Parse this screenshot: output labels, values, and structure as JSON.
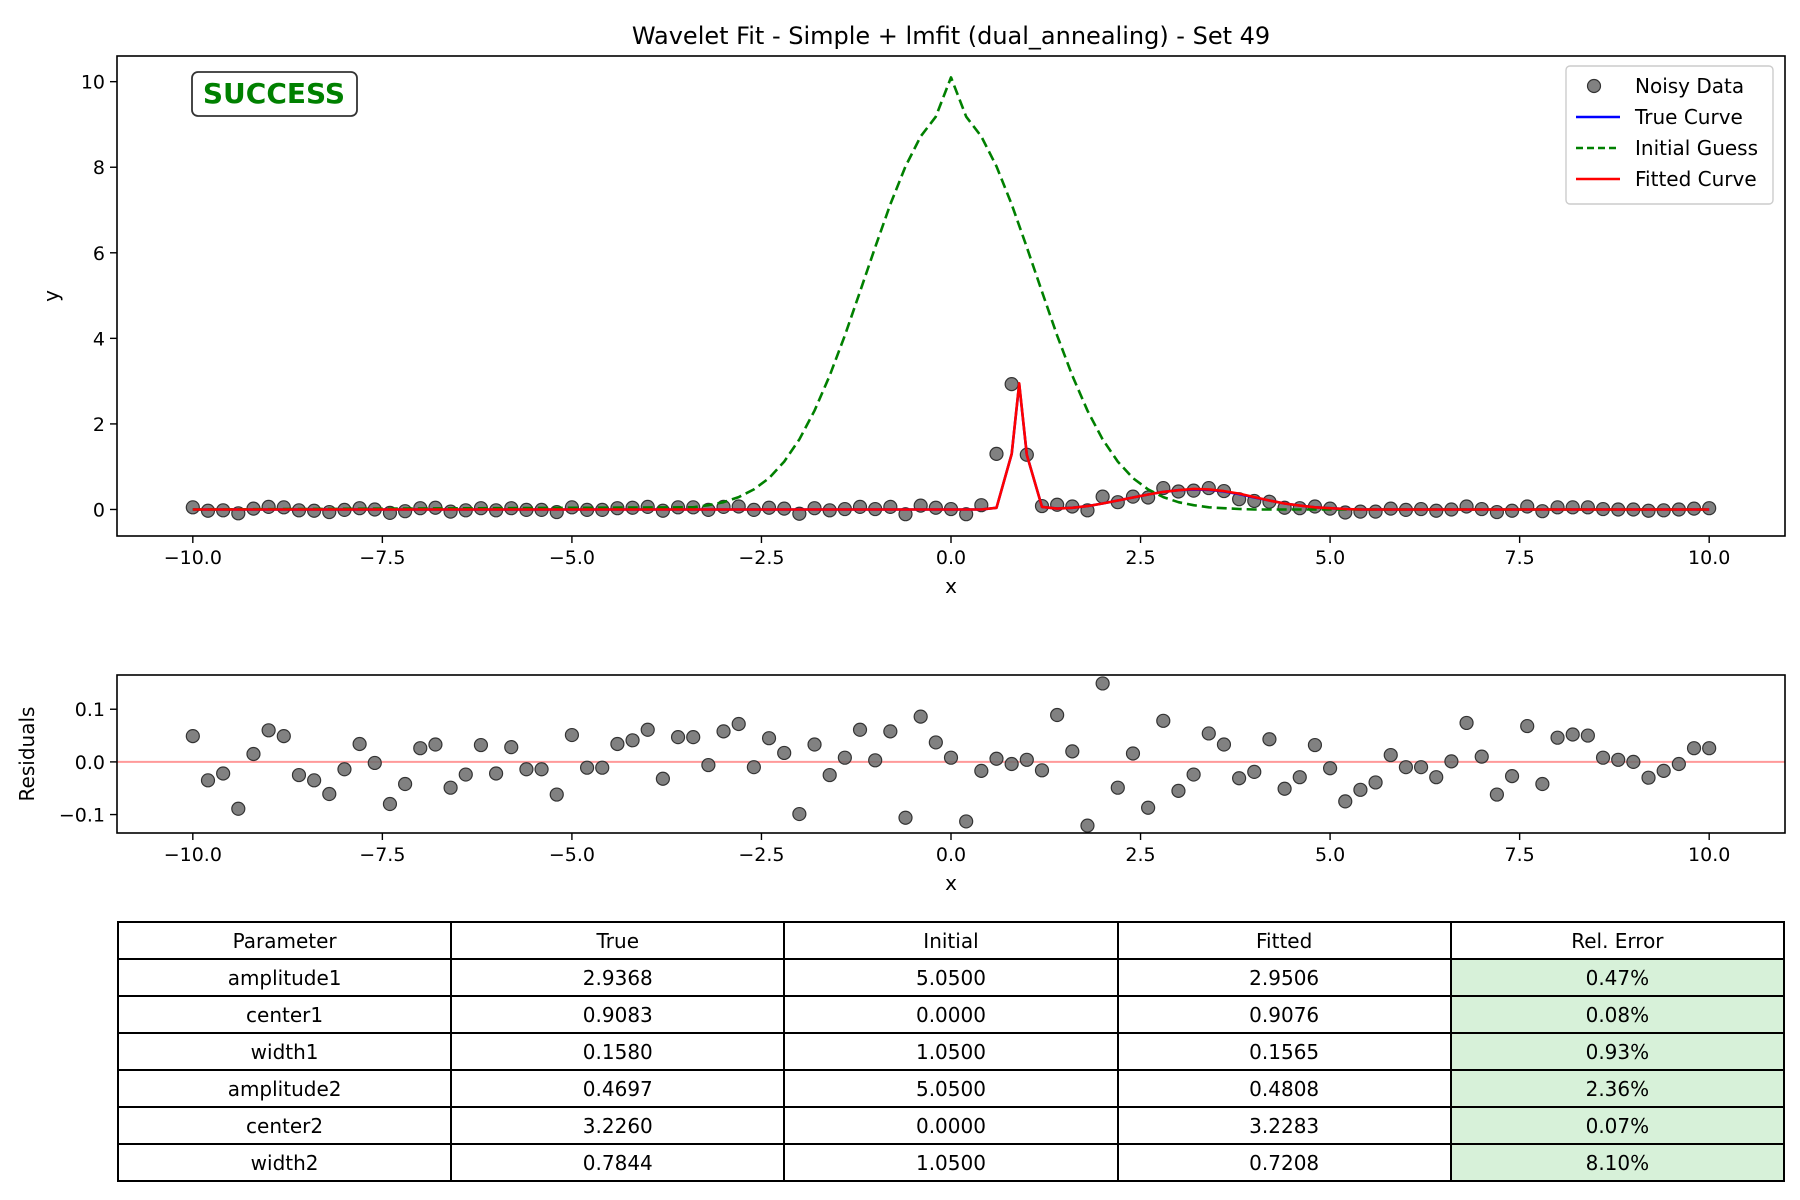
{
  "chart_data": [
    {
      "type": "line",
      "title": "Wavelet Fit - Simple + lmfit (dual_annealing) - Set 49",
      "xlabel": "x",
      "ylabel": "y",
      "xlim": [
        -11.0,
        11.0
      ],
      "ylim": [
        -0.62,
        10.6
      ],
      "xticks": [
        -10.0,
        -7.5,
        -5.0,
        -2.5,
        0.0,
        2.5,
        5.0,
        7.5,
        10.0
      ],
      "xtick_labels": [
        "−10.0",
        "−7.5",
        "−5.0",
        "−2.5",
        "0.0",
        "2.5",
        "5.0",
        "7.5",
        "10.0"
      ],
      "yticks": [
        0,
        2,
        4,
        6,
        8,
        10
      ],
      "ytick_labels": [
        "0",
        "2",
        "4",
        "6",
        "8",
        "10"
      ],
      "grid": false,
      "legend_position": "top-right",
      "status_badge": "SUCCESS",
      "series": [
        {
          "name": "Noisy Data",
          "kind": "scatter",
          "color": "#6b6b6b",
          "x": [
            -10.0,
            -9.8,
            -9.6,
            -9.4,
            -9.2,
            -9.0,
            -8.8,
            -8.6,
            -8.4,
            -8.2,
            -8.0,
            -7.8,
            -7.6,
            -7.4,
            -7.2,
            -7.0,
            -6.8,
            -6.6,
            -6.4,
            -6.2,
            -6.0,
            -5.8,
            -5.6,
            -5.4,
            -5.2,
            -5.0,
            -4.8,
            -4.6,
            -4.4,
            -4.2,
            -4.0,
            -3.8,
            -3.6,
            -3.4,
            -3.2,
            -3.0,
            -2.8,
            -2.6,
            -2.4,
            -2.2,
            -2.0,
            -1.8,
            -1.6,
            -1.4,
            -1.2,
            -1.0,
            -0.8,
            -0.6,
            -0.4,
            -0.2,
            0.0,
            0.2,
            0.4,
            0.6,
            0.8,
            1.0,
            1.2,
            1.4,
            1.6,
            1.8,
            2.0,
            2.2,
            2.4,
            2.6,
            2.8,
            3.0,
            3.2,
            3.4,
            3.6,
            3.8,
            4.0,
            4.2,
            4.4,
            4.6,
            4.8,
            5.0,
            5.2,
            5.4,
            5.6,
            5.8,
            6.0,
            6.2,
            6.4,
            6.6,
            6.8,
            7.0,
            7.2,
            7.4,
            7.6,
            7.8,
            8.0,
            8.2,
            8.4,
            8.6,
            8.8,
            9.0,
            9.2,
            9.4,
            9.6,
            9.8,
            10.0
          ],
          "y": [
            0.05,
            -0.03,
            -0.02,
            -0.09,
            0.02,
            0.06,
            0.05,
            -0.02,
            -0.03,
            -0.06,
            -0.01,
            0.03,
            0.0,
            -0.08,
            -0.04,
            0.03,
            0.04,
            -0.05,
            -0.02,
            0.03,
            -0.02,
            0.03,
            -0.01,
            -0.01,
            -0.06,
            0.05,
            -0.01,
            -0.01,
            0.03,
            0.04,
            0.06,
            -0.03,
            0.05,
            0.05,
            -0.01,
            0.06,
            0.07,
            -0.01,
            0.04,
            0.02,
            -0.1,
            0.03,
            -0.02,
            0.01,
            0.06,
            0.01,
            0.06,
            -0.11,
            0.09,
            0.04,
            0.01,
            -0.11,
            0.1,
            1.3,
            2.93,
            1.28,
            0.08,
            0.11,
            0.07,
            -0.02,
            0.3,
            0.17,
            0.3,
            0.28,
            0.5,
            0.42,
            0.44,
            0.5,
            0.43,
            0.24,
            0.2,
            0.18,
            0.04,
            0.03,
            0.07,
            0.02,
            -0.07,
            -0.05,
            -0.05,
            0.02,
            -0.01,
            0.01,
            -0.03,
            0.0,
            0.07,
            0.01,
            -0.06,
            -0.03,
            0.07,
            -0.04,
            0.05,
            0.05,
            0.05,
            0.01,
            0.0,
            0.0,
            -0.03,
            -0.02,
            0.0,
            0.02,
            0.03
          ]
        },
        {
          "name": "True Curve",
          "kind": "line",
          "color": "#0000ff",
          "dash": "",
          "x": [
            -10.0,
            0.4,
            0.6,
            0.8,
            0.9,
            1.0,
            1.2,
            1.4,
            1.6,
            1.8,
            2.0,
            2.2,
            2.4,
            2.6,
            2.8,
            3.0,
            3.2,
            3.4,
            3.6,
            3.8,
            4.0,
            4.2,
            4.4,
            4.6,
            4.8,
            5.0,
            5.2,
            5.4,
            5.6,
            5.8,
            6.0,
            10.0
          ],
          "y": [
            0.0,
            0.0,
            0.04,
            1.3,
            2.93,
            1.28,
            0.06,
            0.02,
            0.04,
            0.08,
            0.14,
            0.21,
            0.28,
            0.35,
            0.41,
            0.45,
            0.47,
            0.46,
            0.42,
            0.36,
            0.28,
            0.21,
            0.14,
            0.09,
            0.05,
            0.03,
            0.01,
            0.0,
            0.0,
            0.0,
            0.0,
            0.0
          ]
        },
        {
          "name": "Initial Guess",
          "kind": "line",
          "color": "#008000",
          "dash": "10,5",
          "x": [
            -10.0,
            -3.4,
            -3.2,
            -3.0,
            -2.8,
            -2.6,
            -2.4,
            -2.2,
            -2.0,
            -1.8,
            -1.6,
            -1.4,
            -1.2,
            -1.0,
            -0.8,
            -0.6,
            -0.4,
            -0.2,
            0.0,
            0.2,
            0.4,
            0.6,
            0.8,
            1.0,
            1.2,
            1.4,
            1.6,
            1.8,
            2.0,
            2.2,
            2.4,
            2.6,
            2.8,
            3.0,
            3.2,
            3.4,
            3.6,
            3.8,
            4.0,
            4.2,
            4.4,
            4.6,
            10.0
          ],
          "y": [
            0.0,
            0.05,
            0.1,
            0.17,
            0.29,
            0.47,
            0.73,
            1.12,
            1.64,
            2.31,
            3.13,
            4.07,
            5.09,
            6.13,
            7.13,
            8.02,
            8.72,
            9.18,
            10.1,
            9.18,
            8.72,
            8.02,
            7.13,
            6.13,
            5.09,
            4.07,
            3.13,
            2.31,
            1.64,
            1.12,
            0.73,
            0.47,
            0.29,
            0.17,
            0.1,
            0.05,
            0.03,
            0.01,
            0.0,
            0.0,
            0.0,
            0.0,
            0.0
          ]
        },
        {
          "name": "Fitted Curve",
          "kind": "line",
          "color": "#ff0000",
          "dash": "",
          "x": [
            -10.0,
            0.4,
            0.6,
            0.8,
            0.9,
            1.0,
            1.2,
            1.4,
            1.6,
            1.8,
            2.0,
            2.2,
            2.4,
            2.6,
            2.8,
            3.0,
            3.2,
            3.4,
            3.6,
            3.8,
            4.0,
            4.2,
            4.4,
            4.6,
            4.8,
            5.0,
            5.2,
            5.4,
            5.6,
            5.8,
            6.0,
            10.0
          ],
          "y": [
            0.0,
            0.0,
            0.04,
            1.3,
            2.95,
            1.28,
            0.06,
            0.02,
            0.04,
            0.08,
            0.14,
            0.21,
            0.28,
            0.35,
            0.41,
            0.45,
            0.48,
            0.47,
            0.43,
            0.37,
            0.29,
            0.21,
            0.14,
            0.09,
            0.05,
            0.03,
            0.01,
            0.0,
            0.0,
            0.0,
            0.0,
            0.0
          ]
        }
      ]
    },
    {
      "type": "scatter",
      "title": "",
      "xlabel": "x",
      "ylabel": "Residuals",
      "xlim": [
        -11.0,
        11.0
      ],
      "ylim": [
        -0.135,
        0.165
      ],
      "xticks": [
        -10.0,
        -7.5,
        -5.0,
        -2.5,
        0.0,
        2.5,
        5.0,
        7.5,
        10.0
      ],
      "xtick_labels": [
        "−10.0",
        "−7.5",
        "−5.0",
        "−2.5",
        "0.0",
        "2.5",
        "5.0",
        "7.5",
        "10.0"
      ],
      "yticks": [
        -0.1,
        0.0,
        0.1
      ],
      "ytick_labels": [
        "−0.1",
        "0.0",
        "0.1"
      ],
      "grid": false,
      "zero_line_color": "#ff9a9a",
      "series": [
        {
          "kind": "scatter",
          "color": "#6b6b6b",
          "x": [
            -10.0,
            -9.8,
            -9.6,
            -9.4,
            -9.2,
            -9.0,
            -8.8,
            -8.6,
            -8.4,
            -8.2,
            -8.0,
            -7.8,
            -7.6,
            -7.4,
            -7.2,
            -7.0,
            -6.8,
            -6.6,
            -6.4,
            -6.2,
            -6.0,
            -5.8,
            -5.6,
            -5.4,
            -5.2,
            -5.0,
            -4.8,
            -4.6,
            -4.4,
            -4.2,
            -4.0,
            -3.8,
            -3.6,
            -3.4,
            -3.2,
            -3.0,
            -2.8,
            -2.6,
            -2.4,
            -2.2,
            -2.0,
            -1.8,
            -1.6,
            -1.4,
            -1.2,
            -1.0,
            -0.8,
            -0.6,
            -0.4,
            -0.2,
            0.0,
            0.2,
            0.4,
            0.6,
            0.8,
            1.0,
            1.2,
            1.4,
            1.6,
            1.8,
            2.0,
            2.2,
            2.4,
            2.6,
            2.8,
            3.0,
            3.2,
            3.4,
            3.6,
            3.8,
            4.0,
            4.2,
            4.4,
            4.6,
            4.8,
            5.0,
            5.2,
            5.4,
            5.6,
            5.8,
            6.0,
            6.2,
            6.4,
            6.6,
            6.8,
            7.0,
            7.2,
            7.4,
            7.6,
            7.8,
            8.0,
            8.2,
            8.4,
            8.6,
            8.8,
            9.0,
            9.2,
            9.4,
            9.6,
            9.8,
            10.0
          ],
          "y": [
            0.049,
            -0.035,
            -0.022,
            -0.089,
            0.015,
            0.06,
            0.049,
            -0.025,
            -0.035,
            -0.061,
            -0.014,
            0.034,
            -0.002,
            -0.08,
            -0.042,
            0.026,
            0.033,
            -0.049,
            -0.024,
            0.032,
            -0.022,
            0.028,
            -0.014,
            -0.014,
            -0.062,
            0.051,
            -0.011,
            -0.011,
            0.034,
            0.041,
            0.061,
            -0.032,
            0.047,
            0.047,
            -0.006,
            0.058,
            0.072,
            -0.01,
            0.045,
            0.017,
            -0.099,
            0.033,
            -0.025,
            0.008,
            0.061,
            0.003,
            0.058,
            -0.106,
            0.086,
            0.037,
            0.008,
            -0.113,
            -0.017,
            0.006,
            -0.004,
            0.004,
            -0.016,
            0.089,
            0.02,
            -0.121,
            0.149,
            -0.049,
            0.016,
            -0.087,
            0.078,
            -0.055,
            -0.024,
            0.054,
            0.033,
            -0.031,
            -0.019,
            0.043,
            -0.051,
            -0.029,
            0.032,
            -0.012,
            -0.075,
            -0.053,
            -0.039,
            0.013,
            -0.01,
            -0.01,
            -0.029,
            0.001,
            0.074,
            0.01,
            -0.062,
            -0.027,
            0.068,
            -0.042,
            0.046,
            0.052,
            0.05,
            0.008,
            0.004,
            0.0,
            -0.03,
            -0.017,
            -0.004,
            0.026,
            0.026
          ]
        }
      ]
    }
  ],
  "table": {
    "headers": [
      "Parameter",
      "True",
      "Initial",
      "Fitted",
      "Rel. Error"
    ],
    "rows": [
      [
        "amplitude1",
        "2.9368",
        "5.0500",
        "2.9506",
        "0.47%"
      ],
      [
        "center1",
        "0.9083",
        "0.0000",
        "0.9076",
        "0.08%"
      ],
      [
        "width1",
        "0.1580",
        "1.0500",
        "0.1565",
        "0.93%"
      ],
      [
        "amplitude2",
        "0.4697",
        "5.0500",
        "0.4808",
        "2.36%"
      ],
      [
        "center2",
        "3.2260",
        "0.0000",
        "3.2283",
        "0.07%"
      ],
      [
        "width2",
        "0.7844",
        "1.0500",
        "0.7208",
        "8.10%"
      ]
    ],
    "error_cell_color": "#d7f1d9"
  }
}
